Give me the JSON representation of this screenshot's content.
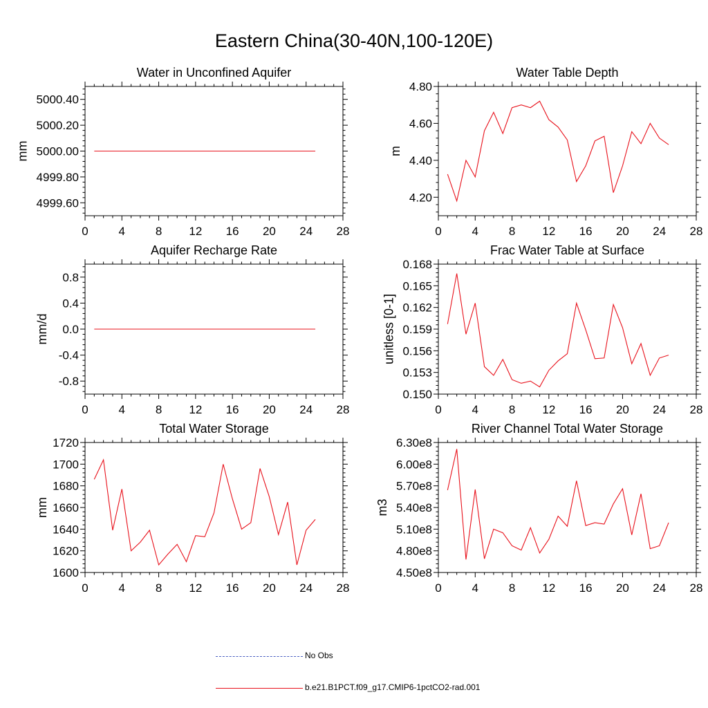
{
  "figure": {
    "title": "Eastern China(30-40N,100-120E)"
  },
  "legend": {
    "obs_label": "No Obs",
    "model_label": "b.e21.B1PCT.f09_g17.CMIP6-1pctCO2-rad.001"
  },
  "colors": {
    "model_line": "#e8101a",
    "obs_line": "#4a5fc1"
  },
  "chart_data": [
    {
      "id": "aquifer-water",
      "type": "line",
      "title": "Water in Unconfined Aquifer",
      "xlabel": "",
      "ylabel": "mm",
      "xlim": [
        0,
        28
      ],
      "ylim": [
        4999.5,
        5000.5
      ],
      "xticks": [
        0,
        4,
        8,
        12,
        16,
        20,
        24,
        28
      ],
      "yticks": [
        4999.6,
        4999.8,
        5000.0,
        5000.2,
        5000.4
      ],
      "ytick_labels": [
        "4999.60",
        "4999.80",
        "5000.00",
        "5000.20",
        "5000.40"
      ],
      "series": [
        {
          "x": [
            1,
            25
          ],
          "values": [
            5000.0,
            5000.0
          ]
        }
      ]
    },
    {
      "id": "water-table-depth",
      "type": "line",
      "title": "Water Table Depth",
      "xlabel": "",
      "ylabel": "m",
      "xlim": [
        0,
        28
      ],
      "ylim": [
        4.1,
        4.8
      ],
      "xticks": [
        0,
        4,
        8,
        12,
        16,
        20,
        24,
        28
      ],
      "yticks": [
        4.2,
        4.4,
        4.6,
        4.8
      ],
      "ytick_labels": [
        "4.20",
        "4.40",
        "4.60",
        "4.80"
      ],
      "series": [
        {
          "x": [
            1,
            2,
            3,
            4,
            5,
            6,
            7,
            8,
            9,
            10,
            11,
            12,
            13,
            14,
            15,
            16,
            17,
            18,
            19,
            20,
            21,
            22,
            23,
            24,
            25
          ],
          "values": [
            4.325,
            4.18,
            4.4,
            4.31,
            4.56,
            4.66,
            4.545,
            4.685,
            4.7,
            4.685,
            4.72,
            4.62,
            4.58,
            4.51,
            4.285,
            4.37,
            4.505,
            4.53,
            4.225,
            4.37,
            4.555,
            4.49,
            4.6,
            4.52,
            4.485
          ]
        }
      ]
    },
    {
      "id": "aquifer-recharge",
      "type": "line",
      "title": "Aquifer Recharge Rate",
      "xlabel": "",
      "ylabel": "mm/d",
      "xlim": [
        0,
        28
      ],
      "ylim": [
        -1.0,
        1.0
      ],
      "xticks": [
        0,
        4,
        8,
        12,
        16,
        20,
        24,
        28
      ],
      "yticks": [
        -0.8,
        -0.4,
        0.0,
        0.4,
        0.8
      ],
      "ytick_labels": [
        "-0.8",
        "-0.4",
        "0.0",
        "0.4",
        "0.8"
      ],
      "series": [
        {
          "x": [
            1,
            25
          ],
          "values": [
            0.0,
            0.0
          ]
        }
      ]
    },
    {
      "id": "frac-water-table",
      "type": "line",
      "title": "Frac Water Table at Surface",
      "xlabel": "",
      "ylabel": "unitless [0-1]",
      "xlim": [
        0,
        28
      ],
      "ylim": [
        0.15,
        0.168
      ],
      "xticks": [
        0,
        4,
        8,
        12,
        16,
        20,
        24,
        28
      ],
      "yticks": [
        0.15,
        0.153,
        0.156,
        0.159,
        0.162,
        0.165,
        0.168
      ],
      "ytick_labels": [
        "0.150",
        "0.153",
        "0.156",
        "0.159",
        "0.162",
        "0.165",
        "0.168"
      ],
      "series": [
        {
          "x": [
            1,
            2,
            3,
            4,
            5,
            6,
            7,
            8,
            9,
            10,
            11,
            12,
            13,
            14,
            15,
            16,
            17,
            18,
            19,
            20,
            21,
            22,
            23,
            24,
            25
          ],
          "values": [
            0.1597,
            0.1667,
            0.1583,
            0.1626,
            0.1538,
            0.1526,
            0.1548,
            0.152,
            0.1515,
            0.1518,
            0.151,
            0.1533,
            0.1546,
            0.1556,
            0.1626,
            0.1589,
            0.1549,
            0.155,
            0.1624,
            0.1592,
            0.1542,
            0.157,
            0.1526,
            0.155,
            0.1554
          ]
        }
      ]
    },
    {
      "id": "total-water-storage",
      "type": "line",
      "title": "Total Water Storage",
      "xlabel": "",
      "ylabel": "mm",
      "xlim": [
        0,
        28
      ],
      "ylim": [
        1600,
        1720
      ],
      "xticks": [
        0,
        4,
        8,
        12,
        16,
        20,
        24,
        28
      ],
      "yticks": [
        1600,
        1620,
        1640,
        1660,
        1680,
        1700,
        1720
      ],
      "ytick_labels": [
        "1600",
        "1620",
        "1640",
        "1660",
        "1680",
        "1700",
        "1720"
      ],
      "series": [
        {
          "x": [
            1,
            2,
            3,
            4,
            5,
            6,
            7,
            8,
            9,
            10,
            11,
            12,
            13,
            14,
            15,
            16,
            17,
            18,
            19,
            20,
            21,
            22,
            23,
            24,
            25
          ],
          "values": [
            1686,
            1704,
            1639,
            1677,
            1620,
            1628,
            1639,
            1607,
            1617,
            1626,
            1610,
            1634,
            1633,
            1655,
            1700,
            1668,
            1640,
            1646,
            1696,
            1670,
            1635,
            1665,
            1607,
            1639,
            1649
          ]
        }
      ]
    },
    {
      "id": "river-channel",
      "type": "line",
      "title": "River Channel Total Water Storage",
      "xlabel": "",
      "ylabel": "m3",
      "xlim": [
        0,
        28
      ],
      "ylim": [
        4.5,
        6.3
      ],
      "xticks": [
        0,
        4,
        8,
        12,
        16,
        20,
        24,
        28
      ],
      "yticks": [
        4.5,
        4.8,
        5.1,
        5.4,
        5.7,
        6.0,
        6.3
      ],
      "ytick_labels": [
        "4.50e8",
        "4.80e8",
        "5.10e8",
        "5.40e8",
        "5.70e8",
        "6.00e8",
        "6.30e8"
      ],
      "series": [
        {
          "x": [
            1,
            2,
            3,
            4,
            5,
            6,
            7,
            8,
            9,
            10,
            11,
            12,
            13,
            14,
            15,
            16,
            17,
            18,
            19,
            20,
            21,
            22,
            23,
            24,
            25
          ],
          "values": [
            5.64,
            6.21,
            4.68,
            5.65,
            4.69,
            5.1,
            5.05,
            4.87,
            4.81,
            5.12,
            4.77,
            4.96,
            5.28,
            5.14,
            5.77,
            5.15,
            5.19,
            5.17,
            5.45,
            5.66,
            5.02,
            5.59,
            4.83,
            4.87,
            5.19
          ]
        }
      ]
    }
  ]
}
